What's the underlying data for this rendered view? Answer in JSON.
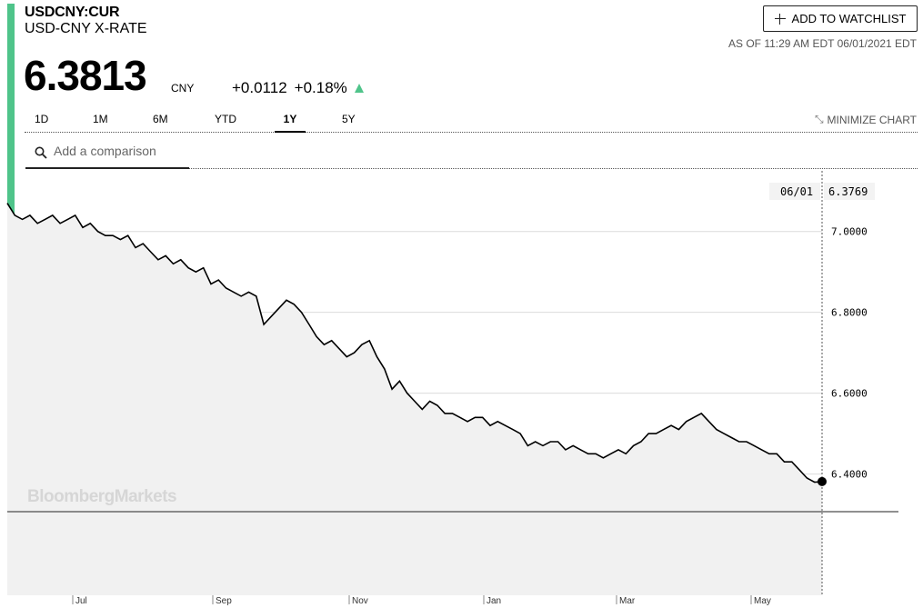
{
  "header": {
    "ticker": "USDCNY:CUR",
    "name": "USD-CNY X-RATE",
    "price": "6.3813",
    "currency": "CNY",
    "change": "+0.0112",
    "change_pct": "+0.18%",
    "as_of": "AS OF 11:29 AM EDT 06/01/2021 EDT",
    "watchlist_label": "ADD TO WATCHLIST",
    "accent_color": "#4fc48a"
  },
  "tabs": [
    {
      "label": "1D",
      "active": false
    },
    {
      "label": "1M",
      "active": false
    },
    {
      "label": "6M",
      "active": false
    },
    {
      "label": "YTD",
      "active": false
    },
    {
      "label": "1Y",
      "active": true
    },
    {
      "label": "5Y",
      "active": false
    }
  ],
  "minimize_label": "MINIMIZE CHART",
  "search": {
    "placeholder": "Add a comparison",
    "value": ""
  },
  "watermark": "BloombergMarkets",
  "chart_data": {
    "type": "area",
    "title": "",
    "xlabel": "",
    "ylabel": "",
    "x_ticks": [
      "Jul",
      "Sep",
      "Nov",
      "Jan",
      "Mar",
      "May"
    ],
    "y_ticks": [
      "7.0000",
      "6.8000",
      "6.6000",
      "6.4000"
    ],
    "ylim": [
      6.1,
      7.15
    ],
    "grid": true,
    "hover": {
      "date": "06/01",
      "value": "6.3769"
    },
    "series": [
      {
        "values": [
          7.07,
          7.04,
          7.03,
          7.04,
          7.02,
          7.03,
          7.04,
          7.02,
          7.03,
          7.04,
          7.01,
          7.02,
          7.0,
          6.99,
          6.99,
          6.98,
          6.99,
          6.96,
          6.97,
          6.95,
          6.93,
          6.94,
          6.92,
          6.93,
          6.91,
          6.9,
          6.91,
          6.87,
          6.88,
          6.86,
          6.85,
          6.84,
          6.85,
          6.84,
          6.77,
          6.79,
          6.81,
          6.83,
          6.82,
          6.8,
          6.77,
          6.74,
          6.72,
          6.73,
          6.71,
          6.69,
          6.7,
          6.72,
          6.73,
          6.69,
          6.66,
          6.61,
          6.63,
          6.6,
          6.58,
          6.56,
          6.58,
          6.57,
          6.55,
          6.55,
          6.54,
          6.53,
          6.54,
          6.54,
          6.52,
          6.53,
          6.52,
          6.51,
          6.5,
          6.47,
          6.48,
          6.47,
          6.48,
          6.48,
          6.46,
          6.47,
          6.46,
          6.45,
          6.45,
          6.44,
          6.45,
          6.46,
          6.45,
          6.47,
          6.48,
          6.5,
          6.5,
          6.51,
          6.52,
          6.51,
          6.53,
          6.54,
          6.55,
          6.53,
          6.51,
          6.5,
          6.49,
          6.48,
          6.48,
          6.47,
          6.46,
          6.45,
          6.45,
          6.43,
          6.43,
          6.41,
          6.39,
          6.38,
          6.3813
        ]
      }
    ]
  }
}
